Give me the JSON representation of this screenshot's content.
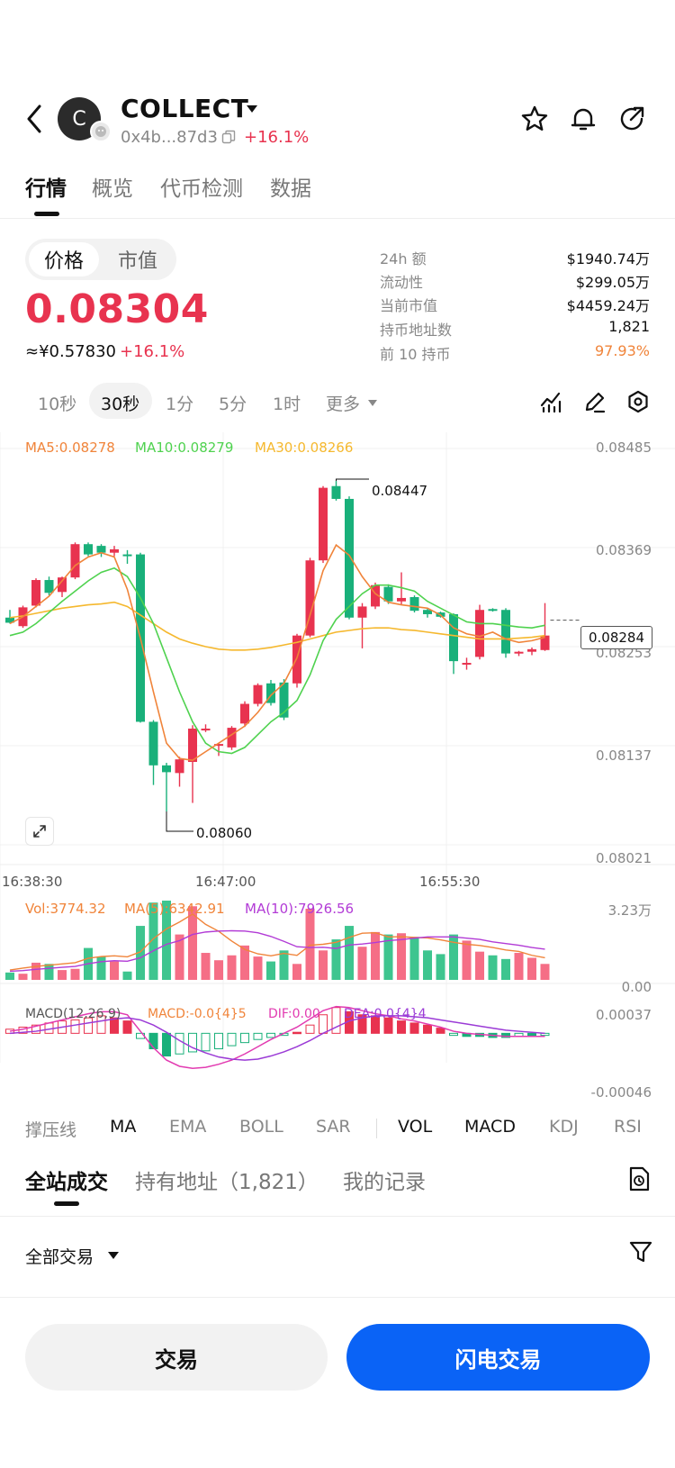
{
  "header": {
    "avatar_letter": "C",
    "token_name": "COLLECT",
    "address": "0x4b...87d3",
    "change": "+16.1%"
  },
  "tabs": [
    {
      "label": "行情",
      "active": true
    },
    {
      "label": "概览",
      "active": false
    },
    {
      "label": "代币检测",
      "active": false
    },
    {
      "label": "数据",
      "active": false
    }
  ],
  "price": {
    "toggle_price": "价格",
    "toggle_mcap": "市值",
    "value": "0.08304",
    "cny": "≈¥0.57830",
    "change": "+16.1%"
  },
  "stats": [
    {
      "label": "24h  额",
      "value": "$1940.74万"
    },
    {
      "label": "流动性",
      "value": "$299.05万"
    },
    {
      "label": "当前市值",
      "value": "$4459.24万"
    },
    {
      "label": "持币地址数",
      "value": "1,821"
    },
    {
      "label": "前 10 持币",
      "value": "97.93%"
    }
  ],
  "intervals": [
    {
      "label": "10秒",
      "active": false
    },
    {
      "label": "30秒",
      "active": true
    },
    {
      "label": "1分",
      "active": false
    },
    {
      "label": "5分",
      "active": false
    },
    {
      "label": "1时",
      "active": false
    },
    {
      "label": "更多",
      "active": false
    }
  ],
  "chart_data": {
    "type": "candlestick",
    "ma_legend": {
      "ma5": "MA5:0.08278",
      "ma10": "MA10:0.08279",
      "ma30": "MA30:0.08266"
    },
    "y_ticks": [
      "0.08485",
      "0.08369",
      "0.08253",
      "0.08137",
      "0.08021"
    ],
    "ylim": [
      0.08021,
      0.08485
    ],
    "x_ticks": [
      "16:38:30",
      "16:47:00",
      "16:55:30"
    ],
    "last_price": "0.08284",
    "high_label": "0.08447",
    "low_label": "0.08060",
    "candles": [
      {
        "o": 0.08287,
        "h": 0.08296,
        "l": 0.0828,
        "c": 0.08281
      },
      {
        "o": 0.08277,
        "h": 0.08301,
        "l": 0.08275,
        "c": 0.08299
      },
      {
        "o": 0.08301,
        "h": 0.08333,
        "l": 0.08299,
        "c": 0.08331
      },
      {
        "o": 0.08331,
        "h": 0.08335,
        "l": 0.08313,
        "c": 0.08316
      },
      {
        "o": 0.08317,
        "h": 0.08335,
        "l": 0.08311,
        "c": 0.08334
      },
      {
        "o": 0.08334,
        "h": 0.08375,
        "l": 0.08332,
        "c": 0.08373
      },
      {
        "o": 0.08373,
        "h": 0.08375,
        "l": 0.08359,
        "c": 0.08361
      },
      {
        "o": 0.08371,
        "h": 0.08373,
        "l": 0.08358,
        "c": 0.08363
      },
      {
        "o": 0.08363,
        "h": 0.08371,
        "l": 0.08359,
        "c": 0.08367
      },
      {
        "o": 0.08361,
        "h": 0.08366,
        "l": 0.0835,
        "c": 0.08359
      },
      {
        "o": 0.08361,
        "h": 0.08363,
        "l": 0.08164,
        "c": 0.08165
      },
      {
        "o": 0.08165,
        "h": 0.08167,
        "l": 0.08091,
        "c": 0.08114
      },
      {
        "o": 0.08114,
        "h": 0.08117,
        "l": 0.0806,
        "c": 0.08106
      },
      {
        "o": 0.08105,
        "h": 0.08124,
        "l": 0.08089,
        "c": 0.08121
      },
      {
        "o": 0.08118,
        "h": 0.08161,
        "l": 0.0807,
        "c": 0.08157
      },
      {
        "o": 0.08157,
        "h": 0.08162,
        "l": 0.08153,
        "c": 0.08157
      },
      {
        "o": 0.08137,
        "h": 0.0814,
        "l": 0.08125,
        "c": 0.08139
      },
      {
        "o": 0.08135,
        "h": 0.0816,
        "l": 0.08132,
        "c": 0.08158
      },
      {
        "o": 0.08163,
        "h": 0.08189,
        "l": 0.08159,
        "c": 0.08186
      },
      {
        "o": 0.08186,
        "h": 0.0821,
        "l": 0.08183,
        "c": 0.08208
      },
      {
        "o": 0.0821,
        "h": 0.08214,
        "l": 0.08184,
        "c": 0.08187
      },
      {
        "o": 0.08211,
        "h": 0.08215,
        "l": 0.08167,
        "c": 0.0817
      },
      {
        "o": 0.0821,
        "h": 0.08268,
        "l": 0.08205,
        "c": 0.08266
      },
      {
        "o": 0.08266,
        "h": 0.08357,
        "l": 0.08264,
        "c": 0.08354
      },
      {
        "o": 0.08354,
        "h": 0.08441,
        "l": 0.08351,
        "c": 0.08439
      },
      {
        "o": 0.08441,
        "h": 0.08447,
        "l": 0.08424,
        "c": 0.08426
      },
      {
        "o": 0.08426,
        "h": 0.08429,
        "l": 0.08285,
        "c": 0.08287
      },
      {
        "o": 0.08287,
        "h": 0.08304,
        "l": 0.08251,
        "c": 0.083
      },
      {
        "o": 0.083,
        "h": 0.08328,
        "l": 0.08297,
        "c": 0.08325
      },
      {
        "o": 0.08323,
        "h": 0.08326,
        "l": 0.08303,
        "c": 0.08306
      },
      {
        "o": 0.08306,
        "h": 0.0834,
        "l": 0.08302,
        "c": 0.0831
      },
      {
        "o": 0.08311,
        "h": 0.08313,
        "l": 0.08293,
        "c": 0.08295
      },
      {
        "o": 0.08296,
        "h": 0.08298,
        "l": 0.08287,
        "c": 0.08291
      },
      {
        "o": 0.08293,
        "h": 0.08294,
        "l": 0.08287,
        "c": 0.08288
      },
      {
        "o": 0.08291,
        "h": 0.08292,
        "l": 0.08221,
        "c": 0.08236
      },
      {
        "o": 0.08232,
        "h": 0.0824,
        "l": 0.08226,
        "c": 0.08234
      },
      {
        "o": 0.08241,
        "h": 0.08302,
        "l": 0.08238,
        "c": 0.08296
      },
      {
        "o": 0.08297,
        "h": 0.08298,
        "l": 0.08294,
        "c": 0.08296
      },
      {
        "o": 0.08296,
        "h": 0.08298,
        "l": 0.0824,
        "c": 0.08245
      },
      {
        "o": 0.08246,
        "h": 0.08248,
        "l": 0.08242,
        "c": 0.08247
      },
      {
        "o": 0.08247,
        "h": 0.08252,
        "l": 0.08243,
        "c": 0.0825
      },
      {
        "o": 0.08249,
        "h": 0.08304,
        "l": 0.08248,
        "c": 0.08266
      }
    ],
    "ma5": [
      0.0828,
      0.08288,
      0.083,
      0.08312,
      0.0833,
      0.08348,
      0.08358,
      0.08363,
      0.08358,
      0.0832,
      0.08263,
      0.082,
      0.0814,
      0.08122,
      0.0812,
      0.0813,
      0.0814,
      0.0815,
      0.0816,
      0.08176,
      0.08196,
      0.0821,
      0.0824,
      0.0829,
      0.08342,
      0.08372,
      0.0836,
      0.08335,
      0.08315,
      0.08305,
      0.08302,
      0.083,
      0.08298,
      0.0829,
      0.08275,
      0.08268,
      0.08265,
      0.0827,
      0.08262,
      0.08258,
      0.0826,
      0.08264
    ],
    "ma10": [
      0.08266,
      0.0827,
      0.0828,
      0.08293,
      0.08306,
      0.08318,
      0.0833,
      0.0834,
      0.08345,
      0.08335,
      0.0831,
      0.0828,
      0.0824,
      0.082,
      0.08165,
      0.0814,
      0.0813,
      0.08128,
      0.08135,
      0.0815,
      0.08165,
      0.08176,
      0.0819,
      0.0822,
      0.0826,
      0.08285,
      0.083,
      0.08315,
      0.08325,
      0.08325,
      0.08322,
      0.08318,
      0.08306,
      0.08298,
      0.0829,
      0.08282,
      0.0828,
      0.0828,
      0.08278,
      0.08276,
      0.08275,
      0.08278
    ],
    "ma30": [
      0.08287,
      0.08289,
      0.08292,
      0.08295,
      0.08298,
      0.083,
      0.08302,
      0.08303,
      0.08305,
      0.083,
      0.0829,
      0.0828,
      0.0827,
      0.08262,
      0.08257,
      0.08253,
      0.0825,
      0.08249,
      0.08249,
      0.0825,
      0.08252,
      0.08255,
      0.08258,
      0.08262,
      0.08266,
      0.0827,
      0.08272,
      0.08274,
      0.08275,
      0.08275,
      0.08273,
      0.08272,
      0.0827,
      0.08268,
      0.08266,
      0.08264,
      0.08262,
      0.08262,
      0.08262,
      0.08263,
      0.08264,
      0.08266
    ],
    "volume_legend": {
      "vol": "Vol:3774.32",
      "ma5": "MA(5):6342.91",
      "ma10": "MA(10):7926.56"
    },
    "volume_ticks": [
      "3.23万",
      "0.00"
    ],
    "volume_max": 32300,
    "volumes": [
      3000,
      2500,
      7000,
      6500,
      4000,
      4500,
      13000,
      9500,
      7500,
      3400,
      22000,
      31500,
      32300,
      18500,
      30000,
      11000,
      8000,
      10000,
      14000,
      9500,
      7500,
      12000,
      6500,
      29000,
      12000,
      16500,
      22000,
      13500,
      19500,
      18500,
      19000,
      17500,
      12000,
      10500,
      18500,
      16000,
      11500,
      10000,
      8500,
      11000,
      9000,
      6500
    ],
    "vol_ma5": [
      4000,
      4800,
      5500,
      6000,
      6500,
      7000,
      8800,
      9500,
      9800,
      9400,
      11400,
      16800,
      20800,
      23600,
      26800,
      22600,
      19800,
      15800,
      12400,
      10600,
      9800,
      10800,
      10000,
      14100,
      14500,
      15300,
      17300,
      19000,
      19200,
      17500,
      17600,
      17300,
      17100,
      16300,
      15300,
      14500,
      14000,
      13200,
      12200,
      11600,
      10000,
      9000
    ],
    "vol_ma10": [
      3500,
      3800,
      4300,
      4700,
      5100,
      5500,
      6600,
      7400,
      7800,
      7600,
      9000,
      11900,
      14500,
      16000,
      18500,
      19500,
      19900,
      20000,
      19900,
      19200,
      17700,
      15700,
      13500,
      13200,
      13300,
      12800,
      14200,
      14600,
      15200,
      16000,
      16400,
      17000,
      17500,
      17500,
      17500,
      17000,
      16500,
      15500,
      14800,
      14100,
      13200,
      12500
    ],
    "macd_legend": {
      "name": "MACD(12,26,9)",
      "macd": "MACD:-0.0{4}5",
      "dif": "DIF:0.00",
      "dea": "DEA:0.0{4}4"
    },
    "macd_ticks": [
      "0.00037",
      "-0.00046"
    ],
    "macd_range": [
      -0.00046,
      0.00037
    ],
    "macd_hist": [
      4e-05,
      6e-05,
      8e-05,
      0.0001,
      0.00012,
      0.00013,
      0.00015,
      0.00017,
      0.00015,
      0.00012,
      -5e-05,
      -0.00015,
      -0.00022,
      -0.0002,
      -0.00018,
      -0.00017,
      -0.00015,
      -0.00012,
      -9e-05,
      -6e-05,
      -4e-05,
      -2e-05,
      1e-05,
      8e-05,
      0.00018,
      0.00025,
      0.00021,
      0.00018,
      0.00017,
      0.00015,
      0.00012,
      0.0001,
      8e-05,
      5e-05,
      -2e-05,
      -3e-05,
      -3e-05,
      -4e-05,
      -4e-05,
      -3e-05,
      -3e-05,
      -2e-05
    ],
    "macd_dif": [
      2e-05,
      4e-05,
      7e-05,
      0.0001,
      0.00013,
      0.00016,
      0.00019,
      0.00021,
      0.00021,
      0.00018,
      2e-05,
      -0.00014,
      -0.00026,
      -0.00032,
      -0.00034,
      -0.00033,
      -0.0003,
      -0.00026,
      -0.0002,
      -0.00013,
      -6e-05,
      0.0,
      6e-05,
      0.00014,
      0.00022,
      0.00026,
      0.00025,
      0.00022,
      0.00019,
      0.00017,
      0.00014,
      0.00012,
      9e-05,
      6e-05,
      2e-05,
      0.0,
      -1e-05,
      -2e-05,
      -3e-05,
      -3e-05,
      -3e-05,
      -3e-05
    ],
    "macd_dea": [
      0.0,
      1e-05,
      2e-05,
      4e-05,
      6e-05,
      8e-05,
      0.0001,
      0.00012,
      0.00014,
      0.00015,
      0.00013,
      8e-05,
      1e-05,
      -7e-05,
      -0.00014,
      -0.00019,
      -0.00023,
      -0.00025,
      -0.00026,
      -0.00025,
      -0.00022,
      -0.00018,
      -0.00013,
      -7e-05,
      0.0,
      6e-05,
      0.00012,
      0.00015,
      0.00017,
      0.00017,
      0.00017,
      0.00016,
      0.00015,
      0.00013,
      0.00011,
      9e-05,
      7e-05,
      5e-05,
      3e-05,
      2e-05,
      1e-05,
      0.0
    ]
  },
  "indicators": [
    {
      "label": "撑压线",
      "on": false
    },
    {
      "label": "MA",
      "on": true
    },
    {
      "label": "EMA",
      "on": false
    },
    {
      "label": "BOLL",
      "on": false
    },
    {
      "label": "SAR",
      "on": false
    },
    {
      "label": "VOL",
      "on": true
    },
    {
      "label": "MACD",
      "on": true
    },
    {
      "label": "KDJ",
      "on": false
    },
    {
      "label": "RSI",
      "on": false
    }
  ],
  "lower_tabs": [
    {
      "label": "全站成交",
      "active": true
    },
    {
      "label": "持有地址（1,821）",
      "active": false
    },
    {
      "label": "我的记录",
      "active": false
    }
  ],
  "filter": {
    "label": "全部交易"
  },
  "buttons": {
    "trade": "交易",
    "flash_trade": "闪电交易"
  },
  "colors": {
    "up": "#e8334f",
    "down": "#19b07a",
    "ma5": "#f0843a",
    "ma10": "#4fd24f",
    "ma30": "#f5b82e",
    "primary": "#0a63f6",
    "macd_dif": "#e23bb1",
    "macd_dea": "#9b3bd6"
  }
}
